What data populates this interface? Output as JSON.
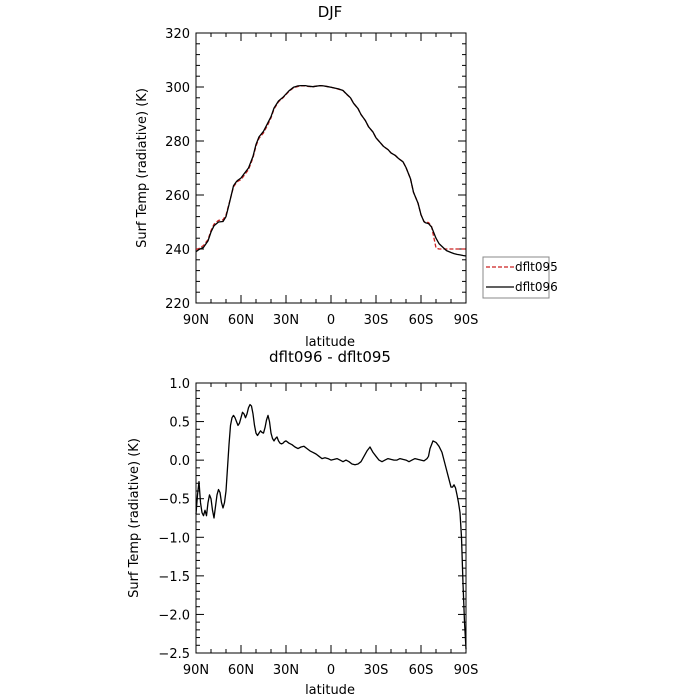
{
  "chart_data": [
    {
      "type": "line",
      "title": "DJF",
      "xlabel": "latitude",
      "ylabel": "Surf Temp (radiative) (K)",
      "xlim": [
        90,
        -90
      ],
      "ylim": [
        220,
        320
      ],
      "x_ticks": [
        90,
        60,
        30,
        0,
        -30,
        -60,
        -90
      ],
      "x_tick_labels": [
        "90N",
        "60N",
        "30N",
        "0",
        "30S",
        "60S",
        "90S"
      ],
      "y_ticks": [
        220,
        240,
        260,
        280,
        300,
        320
      ],
      "y_tick_labels": [
        "220",
        "240",
        "260",
        "280",
        "300",
        "320"
      ],
      "legend": "right-outside",
      "series": [
        {
          "name": "dflt095",
          "color": "#cc2222",
          "dash": "dashed",
          "x": [
            90,
            88,
            85,
            82,
            80,
            78,
            75,
            72,
            70,
            68,
            65,
            63,
            62,
            60,
            58,
            55,
            52,
            50,
            48,
            45,
            42,
            40,
            38,
            35,
            32,
            30,
            28,
            25,
            22,
            20,
            17,
            15,
            12,
            10,
            7,
            5,
            2,
            0,
            -3,
            -5,
            -8,
            -10,
            -13,
            -15,
            -18,
            -20,
            -23,
            -25,
            -28,
            -30,
            -33,
            -35,
            -38,
            -40,
            -43,
            -45,
            -48,
            -50,
            -53,
            -55,
            -58,
            -60,
            -62,
            -63,
            -65,
            -67,
            -70,
            -72,
            -75,
            -77,
            -80,
            -82,
            -84,
            -86,
            -88,
            -90
          ],
          "y": [
            239.8,
            240.2,
            241.3,
            243.5,
            246.8,
            249.2,
            250.6,
            250.8,
            252.6,
            256.7,
            263.0,
            264.6,
            265.1,
            265.7,
            267.2,
            269.4,
            273.8,
            278.2,
            281.0,
            283.0,
            286.2,
            288.6,
            291.8,
            294.5,
            296.0,
            297.2,
            298.4,
            299.7,
            300.2,
            300.4,
            300.4,
            300.2,
            300.1,
            300.3,
            300.5,
            300.4,
            300.1,
            299.9,
            299.5,
            299.2,
            298.7,
            297.5,
            296.0,
            294.0,
            292.0,
            289.8,
            287.5,
            285.3,
            283.3,
            281.2,
            279.3,
            278.0,
            276.8,
            275.6,
            274.6,
            273.5,
            272.3,
            270.2,
            266.0,
            261.0,
            257.0,
            252.7,
            250.2,
            249.9,
            249.8,
            248.4,
            240.4,
            240.0,
            240.0,
            240.0,
            240.0,
            240.0,
            240.0,
            240.0,
            240.0,
            240.0
          ]
        },
        {
          "name": "dflt096",
          "color": "#000000",
          "dash": "solid",
          "x": [
            90,
            88,
            85,
            82,
            80,
            78,
            75,
            72,
            70,
            68,
            65,
            63,
            62,
            60,
            58,
            55,
            52,
            50,
            48,
            45,
            42,
            40,
            38,
            35,
            32,
            30,
            28,
            25,
            22,
            20,
            17,
            15,
            12,
            10,
            7,
            5,
            2,
            0,
            -3,
            -5,
            -8,
            -10,
            -13,
            -15,
            -18,
            -20,
            -23,
            -25,
            -28,
            -30,
            -33,
            -35,
            -38,
            -40,
            -43,
            -45,
            -48,
            -50,
            -53,
            -55,
            -58,
            -60,
            -62,
            -63,
            -65,
            -67,
            -70,
            -72,
            -75,
            -77,
            -80,
            -82,
            -84,
            -86,
            -88,
            -90
          ],
          "y": [
            239.0,
            239.8,
            240.6,
            243.0,
            246.3,
            248.6,
            250.0,
            250.2,
            252.0,
            256.4,
            263.4,
            265.0,
            265.5,
            266.3,
            267.8,
            270.0,
            274.3,
            278.7,
            281.5,
            283.6,
            286.8,
            289.0,
            292.2,
            294.8,
            296.2,
            297.4,
            298.6,
            299.9,
            300.4,
            300.5,
            300.5,
            300.3,
            300.1,
            300.3,
            300.5,
            300.4,
            300.1,
            299.9,
            299.5,
            299.3,
            298.7,
            297.6,
            296.0,
            294.0,
            292.0,
            289.8,
            287.5,
            285.3,
            283.3,
            281.2,
            279.3,
            278.0,
            276.8,
            275.6,
            274.6,
            273.5,
            272.3,
            270.2,
            266.0,
            261.0,
            257.0,
            252.7,
            250.1,
            249.7,
            249.4,
            248.2,
            244.0,
            242.0,
            240.4,
            239.4,
            238.7,
            238.3,
            238.0,
            237.8,
            237.6,
            237.4
          ]
        }
      ]
    },
    {
      "type": "line",
      "title": "dflt096 - dflt095",
      "xlabel": "latitude",
      "ylabel": "Surf Temp (radiative) (K)",
      "xlim": [
        90,
        -90
      ],
      "ylim": [
        -2.5,
        1.0
      ],
      "x_ticks": [
        90,
        60,
        30,
        0,
        -30,
        -60,
        -90
      ],
      "x_tick_labels": [
        "90N",
        "60N",
        "30N",
        "0",
        "30S",
        "60S",
        "90S"
      ],
      "y_ticks": [
        1.0,
        0.5,
        0.0,
        -0.5,
        -1.0,
        -1.5,
        -2.0,
        -2.5
      ],
      "y_tick_labels": [
        "1.0",
        "0.5",
        "0.0",
        "−0.5",
        "−1.0",
        "−1.5",
        "−2.0",
        "−2.5"
      ],
      "series": [
        {
          "color": "#000000",
          "dash": "solid",
          "x": [
            90,
            89,
            88,
            87,
            86,
            85,
            84,
            83,
            82,
            81,
            80,
            79,
            78,
            77,
            76,
            75,
            74,
            73,
            72,
            71,
            70,
            69,
            68,
            67,
            66,
            65,
            64,
            63,
            62,
            61,
            60,
            59,
            58,
            57,
            56,
            55,
            54,
            53,
            52,
            51,
            50,
            49,
            48,
            47,
            46,
            45,
            44,
            43,
            42,
            41,
            40,
            39,
            38,
            37,
            36,
            35,
            34,
            33,
            32,
            31,
            30,
            28,
            26,
            24,
            22,
            20,
            18,
            16,
            14,
            12,
            10,
            8,
            6,
            4,
            2,
            0,
            -2,
            -4,
            -6,
            -8,
            -10,
            -12,
            -14,
            -16,
            -18,
            -20,
            -22,
            -24,
            -26,
            -28,
            -30,
            -32,
            -34,
            -36,
            -38,
            -40,
            -42,
            -44,
            -46,
            -48,
            -50,
            -52,
            -54,
            -56,
            -58,
            -60,
            -62,
            -64,
            -65,
            -66,
            -68,
            -70,
            -72,
            -74,
            -76,
            -78,
            -80,
            -81,
            -82,
            -83,
            -84,
            -85,
            -86,
            -87,
            -88,
            -89,
            -90
          ],
          "y": [
            -0.7,
            -0.45,
            -0.28,
            -0.55,
            -0.68,
            -0.72,
            -0.65,
            -0.72,
            -0.55,
            -0.45,
            -0.5,
            -0.65,
            -0.75,
            -0.6,
            -0.45,
            -0.38,
            -0.42,
            -0.55,
            -0.62,
            -0.55,
            -0.4,
            -0.1,
            0.2,
            0.45,
            0.55,
            0.58,
            0.55,
            0.5,
            0.45,
            0.48,
            0.55,
            0.62,
            0.6,
            0.55,
            0.6,
            0.68,
            0.72,
            0.7,
            0.6,
            0.45,
            0.35,
            0.32,
            0.35,
            0.38,
            0.36,
            0.35,
            0.42,
            0.52,
            0.58,
            0.5,
            0.35,
            0.28,
            0.25,
            0.28,
            0.3,
            0.25,
            0.22,
            0.21,
            0.22,
            0.24,
            0.25,
            0.22,
            0.2,
            0.17,
            0.15,
            0.17,
            0.18,
            0.15,
            0.12,
            0.1,
            0.08,
            0.05,
            0.02,
            0.03,
            0.02,
            0.0,
            0.01,
            0.02,
            0.0,
            -0.02,
            0.0,
            -0.02,
            -0.05,
            -0.06,
            -0.05,
            -0.02,
            0.05,
            0.12,
            0.17,
            0.1,
            0.05,
            0.0,
            -0.02,
            0.0,
            0.02,
            0.01,
            0.0,
            0.0,
            0.02,
            0.01,
            0.0,
            -0.02,
            0.0,
            0.02,
            0.01,
            0.0,
            -0.01,
            0.02,
            0.05,
            0.15,
            0.25,
            0.23,
            0.18,
            0.1,
            -0.05,
            -0.2,
            -0.35,
            -0.35,
            -0.32,
            -0.36,
            -0.45,
            -0.55,
            -0.68,
            -1.0,
            -1.6,
            -2.1,
            -2.45
          ]
        }
      ]
    }
  ]
}
